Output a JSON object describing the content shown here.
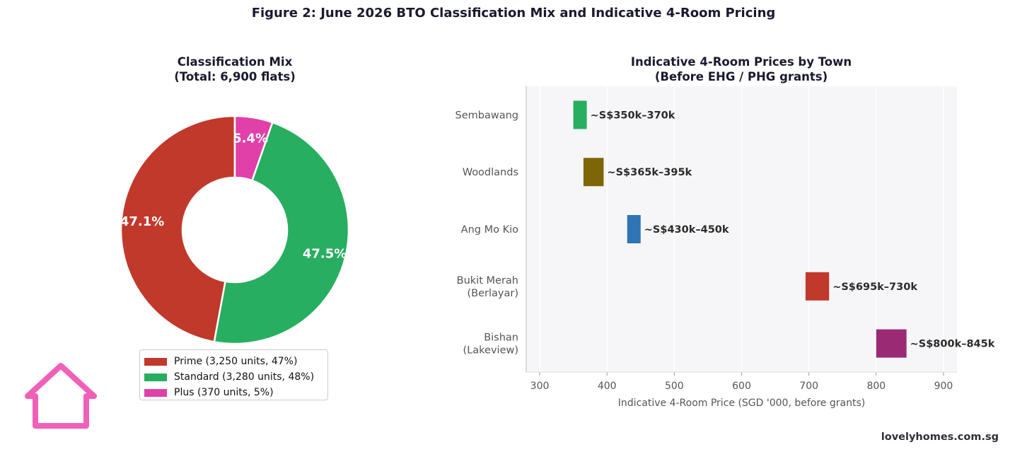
{
  "figure_title": "Figure 2: June 2026 BTO Classification Mix and Indicative 4-Room Pricing",
  "footer_text": "lovelyhomes.com.sg",
  "logo_icon": "house-outline-icon",
  "chart_data": [
    {
      "type": "pie",
      "style": "donut",
      "title_line1": "Classification Mix",
      "title_line2": "(Total: 6,900 flats)",
      "slices": [
        {
          "label": "Prime (3,250 units, 47%)",
          "value": 3250,
          "pct_label": "47.1%",
          "color": "#c0392b"
        },
        {
          "label": "Standard (3,280 units, 48%)",
          "value": 3280,
          "pct_label": "47.5%",
          "color": "#27ae60"
        },
        {
          "label": "Plus (370 units, 5%)",
          "value": 370,
          "pct_label": "5.4%",
          "color": "#e040a8"
        }
      ],
      "legend_position": "lower-center"
    },
    {
      "type": "bar",
      "orientation": "horizontal",
      "title_line1": "Indicative 4-Room Prices by Town",
      "title_line2": "(Before EHG / PHG grants)",
      "xlabel": "Indicative 4-Room Price (SGD '000, before grants)",
      "xlim": [
        280,
        920
      ],
      "xticks": [
        300,
        400,
        500,
        600,
        700,
        800,
        900
      ],
      "grid": "vertical",
      "bars": [
        {
          "town": [
            "Sembawang"
          ],
          "low": 350,
          "high": 370,
          "label": "~S$350k–370k",
          "color": "#27ae60"
        },
        {
          "town": [
            "Woodlands"
          ],
          "low": 365,
          "high": 395,
          "label": "~S$365k–395k",
          "color": "#7d6608"
        },
        {
          "town": [
            "Ang Mo Kio"
          ],
          "low": 430,
          "high": 450,
          "label": "~S$430k–450k",
          "color": "#2e75b6"
        },
        {
          "town": [
            "Bukit Merah",
            "(Berlayar)"
          ],
          "low": 695,
          "high": 730,
          "label": "~S$695k–730k",
          "color": "#c0392b"
        },
        {
          "town": [
            "Bishan",
            "(Lakeview)"
          ],
          "low": 800,
          "high": 845,
          "label": "~S$800k–845k",
          "color": "#9b2a75"
        }
      ]
    }
  ]
}
